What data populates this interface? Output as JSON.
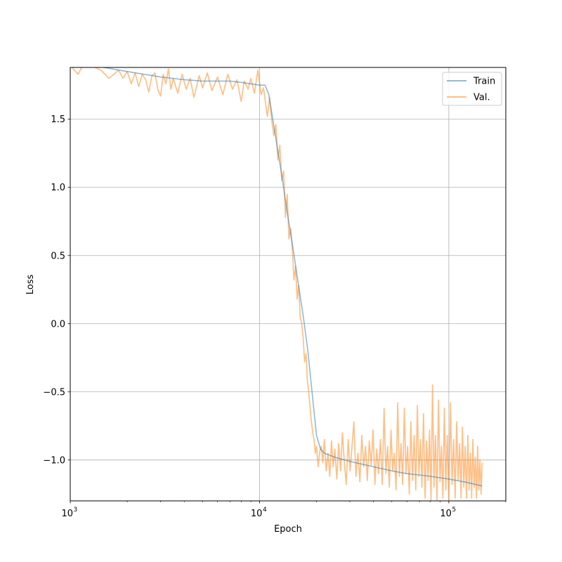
{
  "chart_data": {
    "type": "line",
    "title": "",
    "xlabel": "Epoch",
    "ylabel": "Loss",
    "xscale": "log",
    "xlim": [
      1000,
      200000
    ],
    "ylim": [
      -1.3,
      1.88
    ],
    "grid": true,
    "legend_position": "top-right",
    "x_major_ticks": [
      {
        "value": 1000,
        "base": "10",
        "exp": "3"
      },
      {
        "value": 10000,
        "base": "10",
        "exp": "4"
      },
      {
        "value": 100000,
        "base": "10",
        "exp": "5"
      }
    ],
    "y_ticks": [
      {
        "value": 1.5,
        "label": "1.5"
      },
      {
        "value": 1.0,
        "label": "1.0"
      },
      {
        "value": 0.5,
        "label": "0.5"
      },
      {
        "value": 0.0,
        "label": "0.0"
      },
      {
        "value": -0.5,
        "label": "−0.5"
      },
      {
        "value": -1.0,
        "label": "−1.0"
      }
    ],
    "series": [
      {
        "name": "Train",
        "color": "#1f77b4",
        "opacity": 0.5,
        "points": [
          [
            1500,
            1.88
          ],
          [
            2000,
            1.85
          ],
          [
            3000,
            1.81
          ],
          [
            4000,
            1.79
          ],
          [
            5000,
            1.78
          ],
          [
            6000,
            1.78
          ],
          [
            7000,
            1.78
          ],
          [
            8000,
            1.77
          ],
          [
            9000,
            1.76
          ],
          [
            10000,
            1.75
          ],
          [
            10700,
            1.75
          ],
          [
            11200,
            1.68
          ],
          [
            12000,
            1.42
          ],
          [
            13000,
            1.12
          ],
          [
            14000,
            0.82
          ],
          [
            15000,
            0.56
          ],
          [
            16000,
            0.3
          ],
          [
            17000,
            0.06
          ],
          [
            18000,
            -0.2
          ],
          [
            19000,
            -0.52
          ],
          [
            20000,
            -0.82
          ],
          [
            21000,
            -0.92
          ],
          [
            22000,
            -0.95
          ],
          [
            25000,
            -0.98
          ],
          [
            30000,
            -1.01
          ],
          [
            40000,
            -1.05
          ],
          [
            50000,
            -1.08
          ],
          [
            60000,
            -1.1
          ],
          [
            70000,
            -1.11
          ],
          [
            80000,
            -1.12
          ],
          [
            100000,
            -1.14
          ],
          [
            120000,
            -1.16
          ],
          [
            150000,
            -1.19
          ]
        ]
      },
      {
        "name": "Val.",
        "color": "#ff7f0e",
        "opacity": 0.5,
        "points": [
          [
            1000,
            1.9
          ],
          [
            1050,
            1.86
          ],
          [
            1100,
            1.83
          ],
          [
            1150,
            1.88
          ],
          [
            1250,
            1.9
          ],
          [
            1350,
            1.88
          ],
          [
            1450,
            1.86
          ],
          [
            1500,
            1.84
          ],
          [
            1600,
            1.8
          ],
          [
            1700,
            1.83
          ],
          [
            1800,
            1.86
          ],
          [
            1900,
            1.8
          ],
          [
            2000,
            1.85
          ],
          [
            2100,
            1.76
          ],
          [
            2200,
            1.84
          ],
          [
            2300,
            1.74
          ],
          [
            2400,
            1.83
          ],
          [
            2500,
            1.79
          ],
          [
            2600,
            1.7
          ],
          [
            2700,
            1.82
          ],
          [
            2800,
            1.84
          ],
          [
            2900,
            1.72
          ],
          [
            3000,
            1.67
          ],
          [
            3100,
            1.83
          ],
          [
            3200,
            1.76
          ],
          [
            3300,
            1.87
          ],
          [
            3400,
            1.72
          ],
          [
            3500,
            1.8
          ],
          [
            3700,
            1.69
          ],
          [
            3900,
            1.83
          ],
          [
            4100,
            1.72
          ],
          [
            4300,
            1.8
          ],
          [
            4500,
            1.66
          ],
          [
            4800,
            1.82
          ],
          [
            5000,
            1.73
          ],
          [
            5300,
            1.84
          ],
          [
            5600,
            1.71
          ],
          [
            6000,
            1.81
          ],
          [
            6400,
            1.68
          ],
          [
            6800,
            1.83
          ],
          [
            7200,
            1.72
          ],
          [
            7600,
            1.79
          ],
          [
            8000,
            1.63
          ],
          [
            8300,
            1.78
          ],
          [
            8700,
            1.72
          ],
          [
            9000,
            1.8
          ],
          [
            9400,
            1.69
          ],
          [
            9800,
            1.86
          ],
          [
            10200,
            1.68
          ],
          [
            10500,
            1.73
          ],
          [
            10800,
            1.6
          ],
          [
            11000,
            1.52
          ],
          [
            11300,
            1.66
          ],
          [
            11600,
            1.49
          ],
          [
            11900,
            1.38
          ],
          [
            12200,
            1.46
          ],
          [
            12500,
            1.2
          ],
          [
            12800,
            1.31
          ],
          [
            13100,
            1.05
          ],
          [
            13400,
            1.12
          ],
          [
            13700,
            0.78
          ],
          [
            14000,
            0.95
          ],
          [
            14300,
            0.62
          ],
          [
            14600,
            0.7
          ],
          [
            14900,
            0.55
          ],
          [
            15200,
            0.32
          ],
          [
            15500,
            0.42
          ],
          [
            15800,
            0.18
          ],
          [
            16100,
            0.28
          ],
          [
            16400,
            0.05
          ],
          [
            16700,
            0.0
          ],
          [
            17000,
            -0.1
          ],
          [
            17300,
            -0.28
          ],
          [
            17600,
            -0.22
          ],
          [
            17900,
            -0.42
          ],
          [
            18200,
            -0.5
          ],
          [
            18500,
            -0.62
          ],
          [
            18800,
            -0.72
          ],
          [
            19100,
            -0.8
          ],
          [
            19400,
            -0.85
          ],
          [
            19700,
            -0.95
          ],
          [
            20000,
            -0.9
          ],
          [
            20400,
            -1.05
          ],
          [
            20800,
            -0.94
          ],
          [
            21200,
            -0.9
          ],
          [
            21600,
            -1.02
          ],
          [
            22000,
            -0.85
          ],
          [
            22500,
            -1.08
          ],
          [
            23000,
            -0.95
          ],
          [
            23500,
            -1.12
          ],
          [
            24000,
            -0.86
          ],
          [
            24500,
            -1.05
          ],
          [
            25000,
            -0.92
          ],
          [
            25600,
            -1.14
          ],
          [
            26200,
            -0.88
          ],
          [
            26800,
            -1.08
          ],
          [
            27400,
            -0.8
          ],
          [
            28000,
            -1.0
          ],
          [
            28700,
            -1.18
          ],
          [
            29400,
            -0.85
          ],
          [
            30100,
            -1.08
          ],
          [
            30800,
            -0.9
          ],
          [
            31500,
            -0.72
          ],
          [
            32300,
            -1.12
          ],
          [
            33100,
            -0.95
          ],
          [
            33900,
            -1.16
          ],
          [
            34700,
            -0.82
          ],
          [
            35500,
            -1.05
          ],
          [
            36300,
            -0.9
          ],
          [
            37100,
            -1.15
          ],
          [
            38000,
            -0.86
          ],
          [
            38900,
            -1.04
          ],
          [
            39800,
            -0.78
          ],
          [
            40700,
            -1.18
          ],
          [
            41600,
            -0.92
          ],
          [
            42500,
            -1.1
          ],
          [
            43500,
            -0.85
          ],
          [
            44500,
            -1.18
          ],
          [
            45500,
            -0.62
          ],
          [
            46500,
            -1.1
          ],
          [
            47500,
            -0.9
          ],
          [
            48500,
            -1.2
          ],
          [
            49500,
            -0.78
          ],
          [
            50500,
            -1.08
          ],
          [
            51500,
            -0.95
          ],
          [
            52600,
            -1.22
          ],
          [
            53700,
            -0.58
          ],
          [
            54800,
            -1.12
          ],
          [
            55900,
            -0.88
          ],
          [
            57000,
            -1.18
          ],
          [
            58200,
            -0.62
          ],
          [
            59400,
            -1.1
          ],
          [
            60600,
            -0.9
          ],
          [
            61800,
            -1.25
          ],
          [
            63000,
            -0.72
          ],
          [
            64300,
            -1.15
          ],
          [
            65600,
            -0.82
          ],
          [
            66900,
            -1.22
          ],
          [
            68200,
            -0.6
          ],
          [
            69500,
            -1.12
          ],
          [
            70800,
            -0.85
          ],
          [
            72100,
            -1.2
          ],
          [
            73500,
            -0.66
          ],
          [
            74900,
            -1.28
          ],
          [
            76300,
            -0.86
          ],
          [
            77700,
            -1.15
          ],
          [
            79100,
            -0.78
          ],
          [
            80500,
            -1.3
          ],
          [
            82000,
            -0.45
          ],
          [
            83500,
            -1.2
          ],
          [
            85000,
            -0.82
          ],
          [
            86600,
            -1.3
          ],
          [
            88200,
            -0.56
          ],
          [
            89800,
            -1.16
          ],
          [
            91400,
            -0.9
          ],
          [
            93000,
            -1.28
          ],
          [
            94700,
            -0.62
          ],
          [
            96400,
            -1.22
          ],
          [
            98100,
            -0.82
          ],
          [
            100000,
            -1.3
          ],
          [
            102000,
            -0.58
          ],
          [
            104000,
            -1.18
          ],
          [
            106000,
            -0.85
          ],
          [
            108000,
            -1.28
          ],
          [
            110000,
            -0.72
          ],
          [
            112000,
            -1.15
          ],
          [
            114000,
            -0.88
          ],
          [
            116000,
            -1.28
          ],
          [
            118000,
            -0.76
          ],
          [
            120000,
            -1.2
          ],
          [
            122000,
            -0.9
          ],
          [
            124000,
            -1.28
          ],
          [
            126000,
            -0.82
          ],
          [
            128000,
            -1.22
          ],
          [
            130000,
            -0.95
          ],
          [
            132000,
            -1.28
          ],
          [
            134000,
            -0.85
          ],
          [
            136000,
            -1.2
          ],
          [
            138000,
            -0.98
          ],
          [
            140000,
            -1.28
          ],
          [
            142000,
            -0.9
          ],
          [
            144000,
            -1.22
          ],
          [
            146000,
            -1.0
          ],
          [
            148000,
            -1.25
          ],
          [
            150000,
            -1.02
          ]
        ]
      }
    ]
  }
}
